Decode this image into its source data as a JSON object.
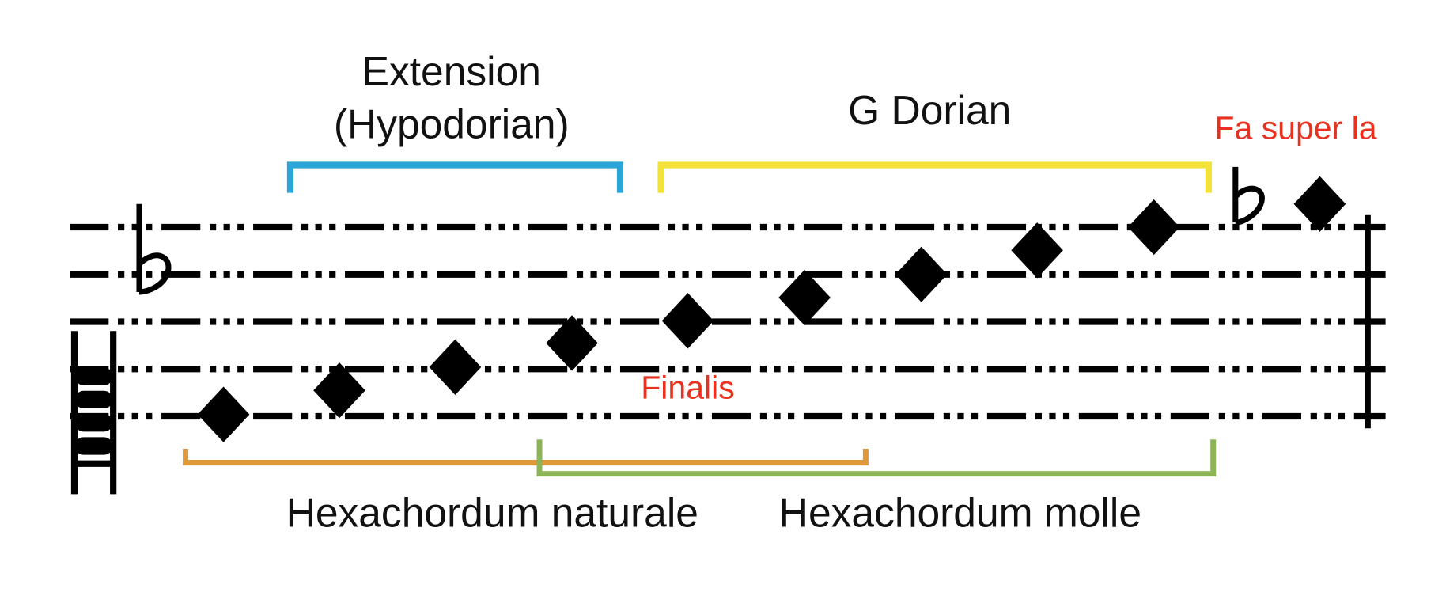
{
  "extension": {
    "title": "Extension",
    "subtitle": "(Hypodorian)"
  },
  "mode": "G Dorian",
  "fa_super_la": "Fa super la",
  "finalis": "Finalis",
  "hexachords": [
    "Hexachordum naturale",
    "Hexachordum molle"
  ]
}
